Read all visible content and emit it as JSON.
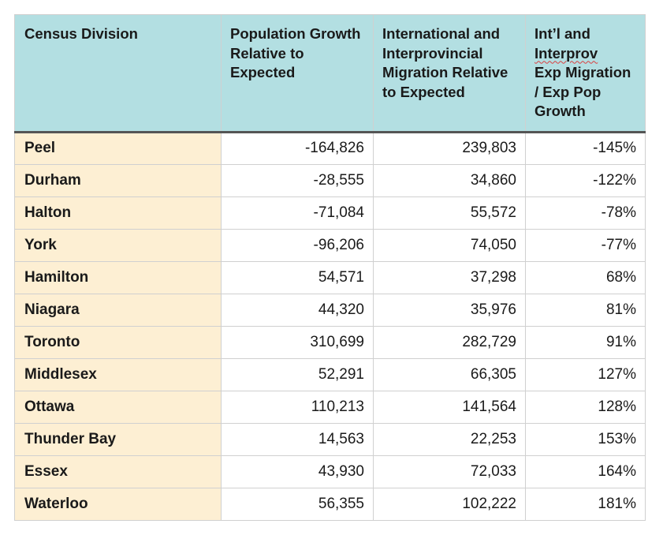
{
  "table": {
    "headers": {
      "col1": "Census Division",
      "col2": "Population Growth Relative to Expected",
      "col3": "International and Interprovincial Migration Relative to Expected",
      "col4_part1": "Int’l and",
      "col4_part2": "Interprov",
      "col4_part3": "Exp Migration / Exp Pop Growth"
    },
    "rows": [
      {
        "division": "Peel",
        "pop_growth": "-164,826",
        "migration": "239,803",
        "ratio": "-145%"
      },
      {
        "division": "Durham",
        "pop_growth": "-28,555",
        "migration": "34,860",
        "ratio": "-122%"
      },
      {
        "division": "Halton",
        "pop_growth": "-71,084",
        "migration": "55,572",
        "ratio": "-78%"
      },
      {
        "division": "York",
        "pop_growth": "-96,206",
        "migration": "74,050",
        "ratio": "-77%"
      },
      {
        "division": "Hamilton",
        "pop_growth": "54,571",
        "migration": "37,298",
        "ratio": "68%"
      },
      {
        "division": "Niagara",
        "pop_growth": "44,320",
        "migration": "35,976",
        "ratio": "81%"
      },
      {
        "division": "Toronto",
        "pop_growth": "310,699",
        "migration": "282,729",
        "ratio": "91%"
      },
      {
        "division": "Middlesex",
        "pop_growth": "52,291",
        "migration": "66,305",
        "ratio": "127%"
      },
      {
        "division": "Ottawa",
        "pop_growth": "110,213",
        "migration": "141,564",
        "ratio": "128%"
      },
      {
        "division": "Thunder Bay",
        "pop_growth": "14,563",
        "migration": "22,253",
        "ratio": "153%"
      },
      {
        "division": "Essex",
        "pop_growth": "43,930",
        "migration": "72,033",
        "ratio": "164%"
      },
      {
        "division": "Waterloo",
        "pop_growth": "56,355",
        "migration": "102,222",
        "ratio": "181%"
      }
    ]
  },
  "colors": {
    "header_bg": "#b3dfe2",
    "name_col_bg": "#fdefd3",
    "spellcheck_underline": "#d94040"
  }
}
